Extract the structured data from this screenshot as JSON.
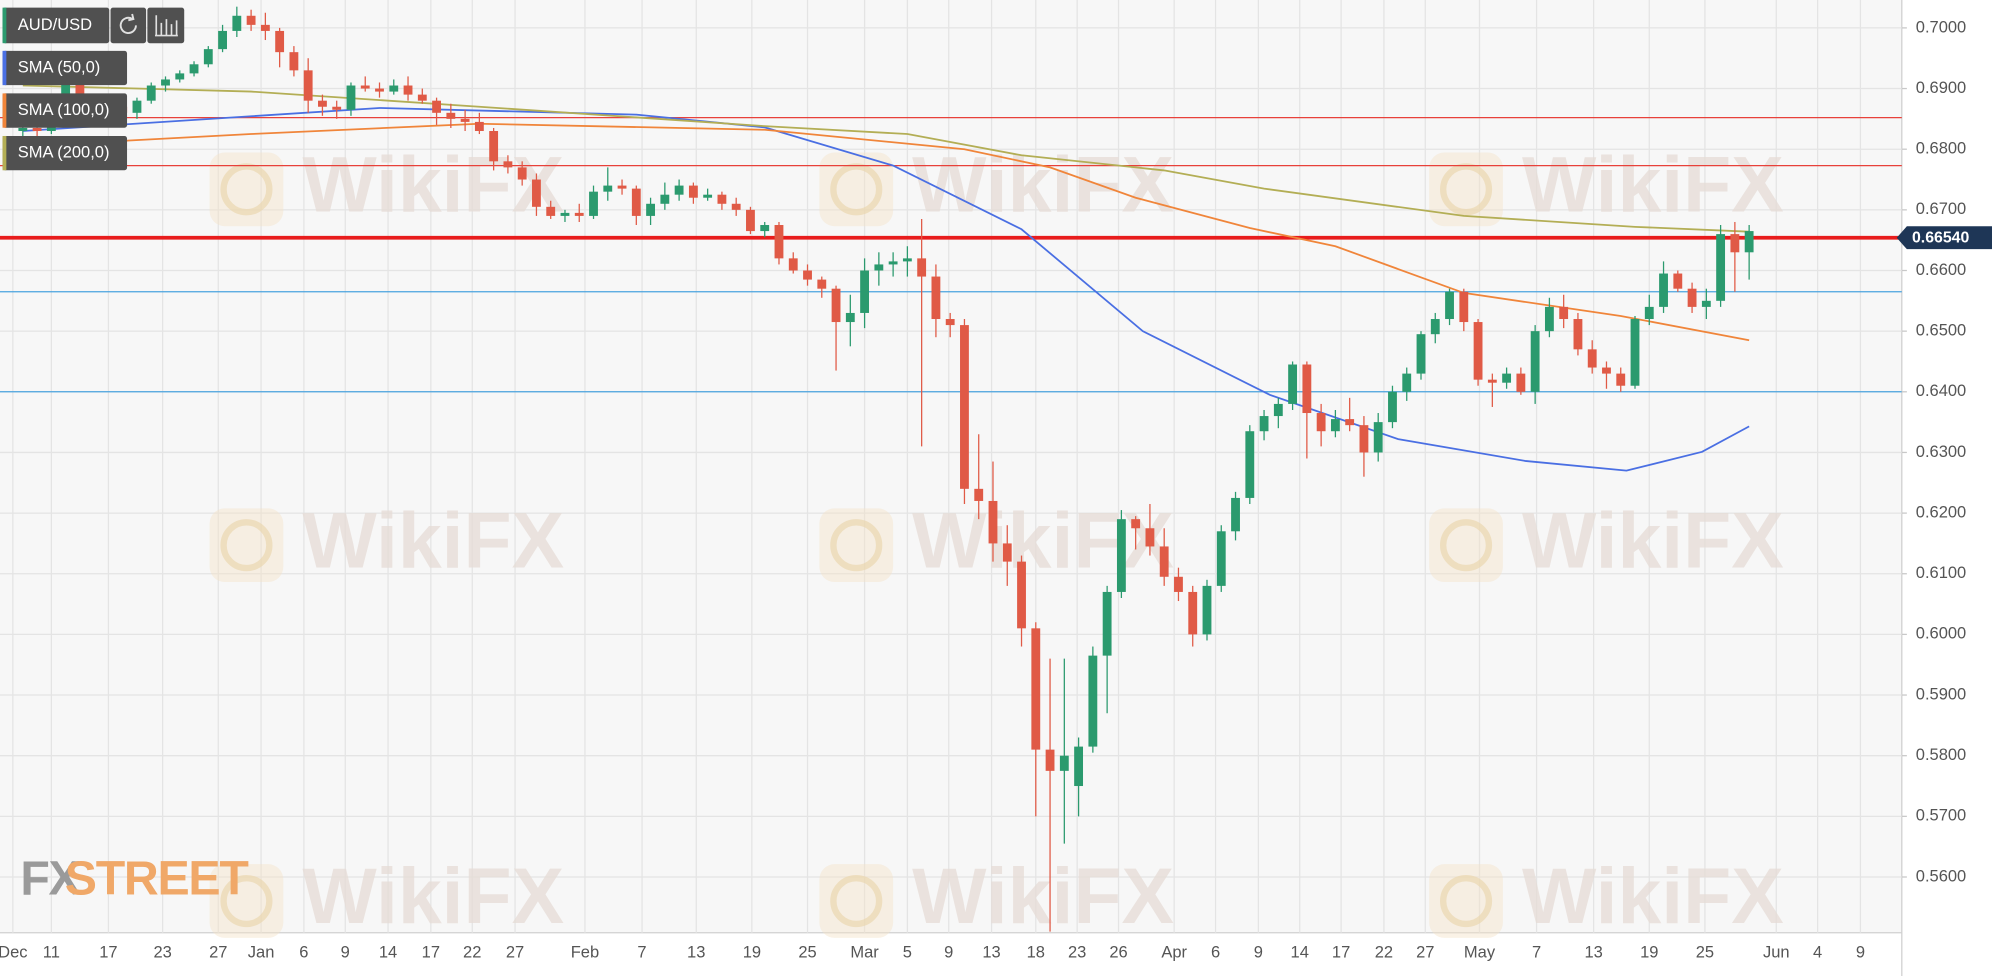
{
  "chart_data": {
    "type": "candlestick",
    "symbol": "AUD/USD",
    "up_color": "#2b9a6e",
    "down_color": "#e05a46",
    "open": [
      0.683,
      0.6835,
      0.683,
      0.687,
      0.6925,
      0.688,
      0.6865,
      0.687,
      0.686,
      0.688,
      0.6905,
      0.6915,
      0.6925,
      0.694,
      0.6965,
      0.6995,
      0.702,
      0.7005,
      0.6995,
      0.696,
      0.693,
      0.688,
      0.687,
      0.6865,
      0.6905,
      0.69,
      0.6895,
      0.6905,
      0.689,
      0.688,
      0.686,
      0.685,
      0.6845,
      0.683,
      0.678,
      0.677,
      0.675,
      0.6705,
      0.669,
      0.6695,
      0.669,
      0.673,
      0.674,
      0.6735,
      0.669,
      0.671,
      0.6725,
      0.674,
      0.672,
      0.6725,
      0.671,
      0.67,
      0.6665,
      0.6675,
      0.662,
      0.66,
      0.6585,
      0.657,
      0.6515,
      0.653,
      0.66,
      0.661,
      0.6615,
      0.662,
      0.659,
      0.652,
      0.651,
      0.624,
      0.622,
      0.615,
      0.612,
      0.601,
      0.581,
      0.5775,
      0.575,
      0.5815,
      0.5965,
      0.607,
      0.619,
      0.6175,
      0.6145,
      0.6095,
      0.607,
      0.6,
      0.608,
      0.617,
      0.6225,
      0.6335,
      0.636,
      0.638,
      0.6445,
      0.6365,
      0.6335,
      0.6355,
      0.6345,
      0.63,
      0.635,
      0.64,
      0.643,
      0.6495,
      0.652,
      0.6565,
      0.6515,
      0.642,
      0.6415,
      0.643,
      0.64,
      0.65,
      0.654,
      0.652,
      0.647,
      0.644,
      0.643,
      0.641,
      0.652,
      0.654,
      0.6595,
      0.657,
      0.654,
      0.655,
      0.666,
      0.663
    ],
    "high": [
      0.685,
      0.685,
      0.688,
      0.6935,
      0.694,
      0.689,
      0.688,
      0.689,
      0.6885,
      0.691,
      0.692,
      0.693,
      0.6945,
      0.697,
      0.7005,
      0.7035,
      0.703,
      0.7025,
      0.7,
      0.697,
      0.695,
      0.689,
      0.688,
      0.691,
      0.692,
      0.691,
      0.6915,
      0.692,
      0.69,
      0.6885,
      0.6875,
      0.6865,
      0.686,
      0.6835,
      0.679,
      0.678,
      0.676,
      0.6715,
      0.67,
      0.671,
      0.674,
      0.677,
      0.675,
      0.674,
      0.672,
      0.6745,
      0.675,
      0.6745,
      0.6735,
      0.673,
      0.672,
      0.6705,
      0.668,
      0.668,
      0.663,
      0.661,
      0.659,
      0.6575,
      0.656,
      0.662,
      0.663,
      0.663,
      0.664,
      0.6685,
      0.661,
      0.653,
      0.652,
      0.633,
      0.6285,
      0.618,
      0.613,
      0.602,
      0.596,
      0.596,
      0.583,
      0.598,
      0.608,
      0.6205,
      0.6195,
      0.6215,
      0.6175,
      0.611,
      0.608,
      0.609,
      0.618,
      0.6235,
      0.6345,
      0.637,
      0.639,
      0.645,
      0.645,
      0.638,
      0.637,
      0.639,
      0.636,
      0.6365,
      0.641,
      0.644,
      0.65,
      0.653,
      0.657,
      0.657,
      0.652,
      0.643,
      0.644,
      0.644,
      0.651,
      0.6555,
      0.656,
      0.653,
      0.6485,
      0.645,
      0.644,
      0.6525,
      0.656,
      0.6615,
      0.66,
      0.658,
      0.657,
      0.6675,
      0.668,
      0.6675
    ],
    "low": [
      0.6815,
      0.682,
      0.6825,
      0.686,
      0.686,
      0.6855,
      0.6855,
      0.6855,
      0.685,
      0.6875,
      0.6895,
      0.691,
      0.692,
      0.6935,
      0.696,
      0.6985,
      0.6995,
      0.698,
      0.6935,
      0.692,
      0.686,
      0.6855,
      0.685,
      0.6855,
      0.6895,
      0.6885,
      0.689,
      0.688,
      0.6875,
      0.684,
      0.6835,
      0.683,
      0.6825,
      0.6765,
      0.676,
      0.674,
      0.669,
      0.6685,
      0.668,
      0.668,
      0.6685,
      0.6715,
      0.6725,
      0.6675,
      0.6675,
      0.67,
      0.6715,
      0.671,
      0.6715,
      0.67,
      0.669,
      0.666,
      0.6655,
      0.661,
      0.6595,
      0.6575,
      0.6555,
      0.6435,
      0.6475,
      0.6505,
      0.6575,
      0.659,
      0.659,
      0.631,
      0.649,
      0.649,
      0.6215,
      0.619,
      0.612,
      0.608,
      0.598,
      0.57,
      0.551,
      0.5655,
      0.57,
      0.5805,
      0.587,
      0.606,
      0.614,
      0.613,
      0.608,
      0.6055,
      0.598,
      0.599,
      0.607,
      0.6155,
      0.6215,
      0.632,
      0.634,
      0.637,
      0.629,
      0.631,
      0.6325,
      0.6335,
      0.626,
      0.6285,
      0.634,
      0.6385,
      0.642,
      0.648,
      0.651,
      0.65,
      0.641,
      0.6375,
      0.6405,
      0.6395,
      0.638,
      0.649,
      0.6505,
      0.646,
      0.643,
      0.6405,
      0.64,
      0.6405,
      0.651,
      0.653,
      0.6565,
      0.653,
      0.652,
      0.654,
      0.6565,
      0.6585
    ],
    "close": [
      0.6835,
      0.683,
      0.687,
      0.6925,
      0.688,
      0.6865,
      0.687,
      0.686,
      0.688,
      0.6905,
      0.6915,
      0.6925,
      0.694,
      0.6965,
      0.6995,
      0.702,
      0.7005,
      0.6995,
      0.696,
      0.693,
      0.688,
      0.687,
      0.6865,
      0.6905,
      0.69,
      0.6895,
      0.6905,
      0.689,
      0.688,
      0.686,
      0.685,
      0.6845,
      0.683,
      0.678,
      0.677,
      0.675,
      0.6705,
      0.669,
      0.6695,
      0.669,
      0.673,
      0.674,
      0.6735,
      0.669,
      0.671,
      0.6725,
      0.674,
      0.672,
      0.6725,
      0.671,
      0.67,
      0.6665,
      0.6675,
      0.662,
      0.66,
      0.6585,
      0.657,
      0.6515,
      0.653,
      0.66,
      0.661,
      0.6615,
      0.662,
      0.659,
      0.652,
      0.651,
      0.624,
      0.622,
      0.615,
      0.612,
      0.601,
      0.581,
      0.5775,
      0.58,
      0.5815,
      0.5965,
      0.607,
      0.619,
      0.6175,
      0.6145,
      0.6095,
      0.607,
      0.6,
      0.608,
      0.617,
      0.6225,
      0.6335,
      0.636,
      0.638,
      0.6445,
      0.6365,
      0.6335,
      0.6355,
      0.6345,
      0.63,
      0.635,
      0.64,
      0.643,
      0.6495,
      0.652,
      0.6565,
      0.6515,
      0.642,
      0.6415,
      0.643,
      0.64,
      0.65,
      0.654,
      0.652,
      0.647,
      0.644,
      0.643,
      0.641,
      0.652,
      0.654,
      0.6595,
      0.657,
      0.654,
      0.655,
      0.666,
      0.663,
      0.6665
    ],
    "series": [
      {
        "name": "SMA (50,0)",
        "color": "#4a6fe3",
        "x": [
          0,
          25,
          43,
          52,
          61,
          70,
          78.5,
          87.4,
          96.4,
          105.3,
          112.4,
          117.7,
          121
        ],
        "values": [
          0.683,
          0.6868,
          0.6857,
          0.6836,
          0.6773,
          0.6668,
          0.65,
          0.6395,
          0.6322,
          0.6286,
          0.627,
          0.6301,
          0.6343
        ]
      },
      {
        "name": "SMA (100,0)",
        "color": "#f0853a",
        "x": [
          0,
          16,
          32,
          52,
          66,
          72,
          78,
          86,
          92,
          101,
          112,
          121
        ],
        "values": [
          0.6805,
          0.6825,
          0.6842,
          0.6832,
          0.68,
          0.677,
          0.672,
          0.667,
          0.664,
          0.6563,
          0.6525,
          0.6485
        ]
      },
      {
        "name": "SMA (200,0)",
        "color": "#b3ae55",
        "x": [
          0,
          16,
          32,
          52,
          62,
          70,
          80,
          87,
          101,
          113,
          121
        ],
        "values": [
          0.6905,
          0.6895,
          0.687,
          0.6838,
          0.6825,
          0.679,
          0.6765,
          0.6735,
          0.669,
          0.6672,
          0.6664
        ]
      }
    ],
    "levels": [
      {
        "value": 0.6852,
        "color": "#e8413a",
        "width": 1
      },
      {
        "value": 0.6773,
        "color": "#e8413a",
        "width": 1
      },
      {
        "value": 0.6654,
        "color": "#e81c1c",
        "width": 3
      },
      {
        "value": 0.6565,
        "color": "#4aa3df",
        "width": 1
      },
      {
        "value": 0.64,
        "color": "#4aa3df",
        "width": 1
      }
    ],
    "last_price": {
      "value": 0.6654,
      "label": "0.66540"
    },
    "ylim": [
      0.5508,
      0.7046
    ],
    "yticks": [
      {
        "value": 0.56,
        "label": "0.5600"
      },
      {
        "value": 0.57,
        "label": "0.5700"
      },
      {
        "value": 0.58,
        "label": "0.5800"
      },
      {
        "value": 0.59,
        "label": "0.5900"
      },
      {
        "value": 0.6,
        "label": "0.6000"
      },
      {
        "value": 0.61,
        "label": "0.6100"
      },
      {
        "value": 0.62,
        "label": "0.6200"
      },
      {
        "value": 0.63,
        "label": "0.6300"
      },
      {
        "value": 0.64,
        "label": "0.6400"
      },
      {
        "value": 0.65,
        "label": "0.6500"
      },
      {
        "value": 0.66,
        "label": "0.6600"
      },
      {
        "value": 0.67,
        "label": "0.6700"
      },
      {
        "value": 0.68,
        "label": "0.6800"
      },
      {
        "value": 0.69,
        "label": "0.6900"
      },
      {
        "value": 0.7,
        "label": "0.7000"
      }
    ],
    "xlim": [
      -1.6,
      131.7
    ],
    "xticks": [
      {
        "value": -0.7,
        "label": "Dec"
      },
      {
        "value": 2.0,
        "label": "11"
      },
      {
        "value": 6.0,
        "label": "17"
      },
      {
        "value": 9.8,
        "label": "23"
      },
      {
        "value": 13.7,
        "label": "27"
      },
      {
        "value": 16.7,
        "label": "Jan"
      },
      {
        "value": 19.7,
        "label": "6"
      },
      {
        "value": 22.6,
        "label": "9"
      },
      {
        "value": 25.6,
        "label": "14"
      },
      {
        "value": 28.6,
        "label": "17"
      },
      {
        "value": 31.5,
        "label": "22"
      },
      {
        "value": 34.5,
        "label": "27"
      },
      {
        "value": 39.4,
        "label": "Feb"
      },
      {
        "value": 43.4,
        "label": "7"
      },
      {
        "value": 47.2,
        "label": "13"
      },
      {
        "value": 51.1,
        "label": "19"
      },
      {
        "value": 55.0,
        "label": "25"
      },
      {
        "value": 59.0,
        "label": "Mar"
      },
      {
        "value": 62.0,
        "label": "5"
      },
      {
        "value": 64.9,
        "label": "9"
      },
      {
        "value": 67.9,
        "label": "13"
      },
      {
        "value": 71.0,
        "label": "18"
      },
      {
        "value": 73.9,
        "label": "23"
      },
      {
        "value": 76.8,
        "label": "26"
      },
      {
        "value": 80.7,
        "label": "Apr"
      },
      {
        "value": 83.6,
        "label": "6"
      },
      {
        "value": 86.6,
        "label": "9"
      },
      {
        "value": 89.5,
        "label": "14"
      },
      {
        "value": 92.4,
        "label": "17"
      },
      {
        "value": 95.4,
        "label": "22"
      },
      {
        "value": 98.3,
        "label": "27"
      },
      {
        "value": 102.1,
        "label": "May"
      },
      {
        "value": 106.1,
        "label": "7"
      },
      {
        "value": 110.1,
        "label": "13"
      },
      {
        "value": 114.0,
        "label": "19"
      },
      {
        "value": 117.9,
        "label": "25"
      },
      {
        "value": 122.9,
        "label": "Jun"
      },
      {
        "value": 125.8,
        "label": "4"
      },
      {
        "value": 128.8,
        "label": "9"
      }
    ],
    "grid": true,
    "watermark": "WikiFX",
    "logo": [
      "FX",
      "STREET"
    ]
  }
}
